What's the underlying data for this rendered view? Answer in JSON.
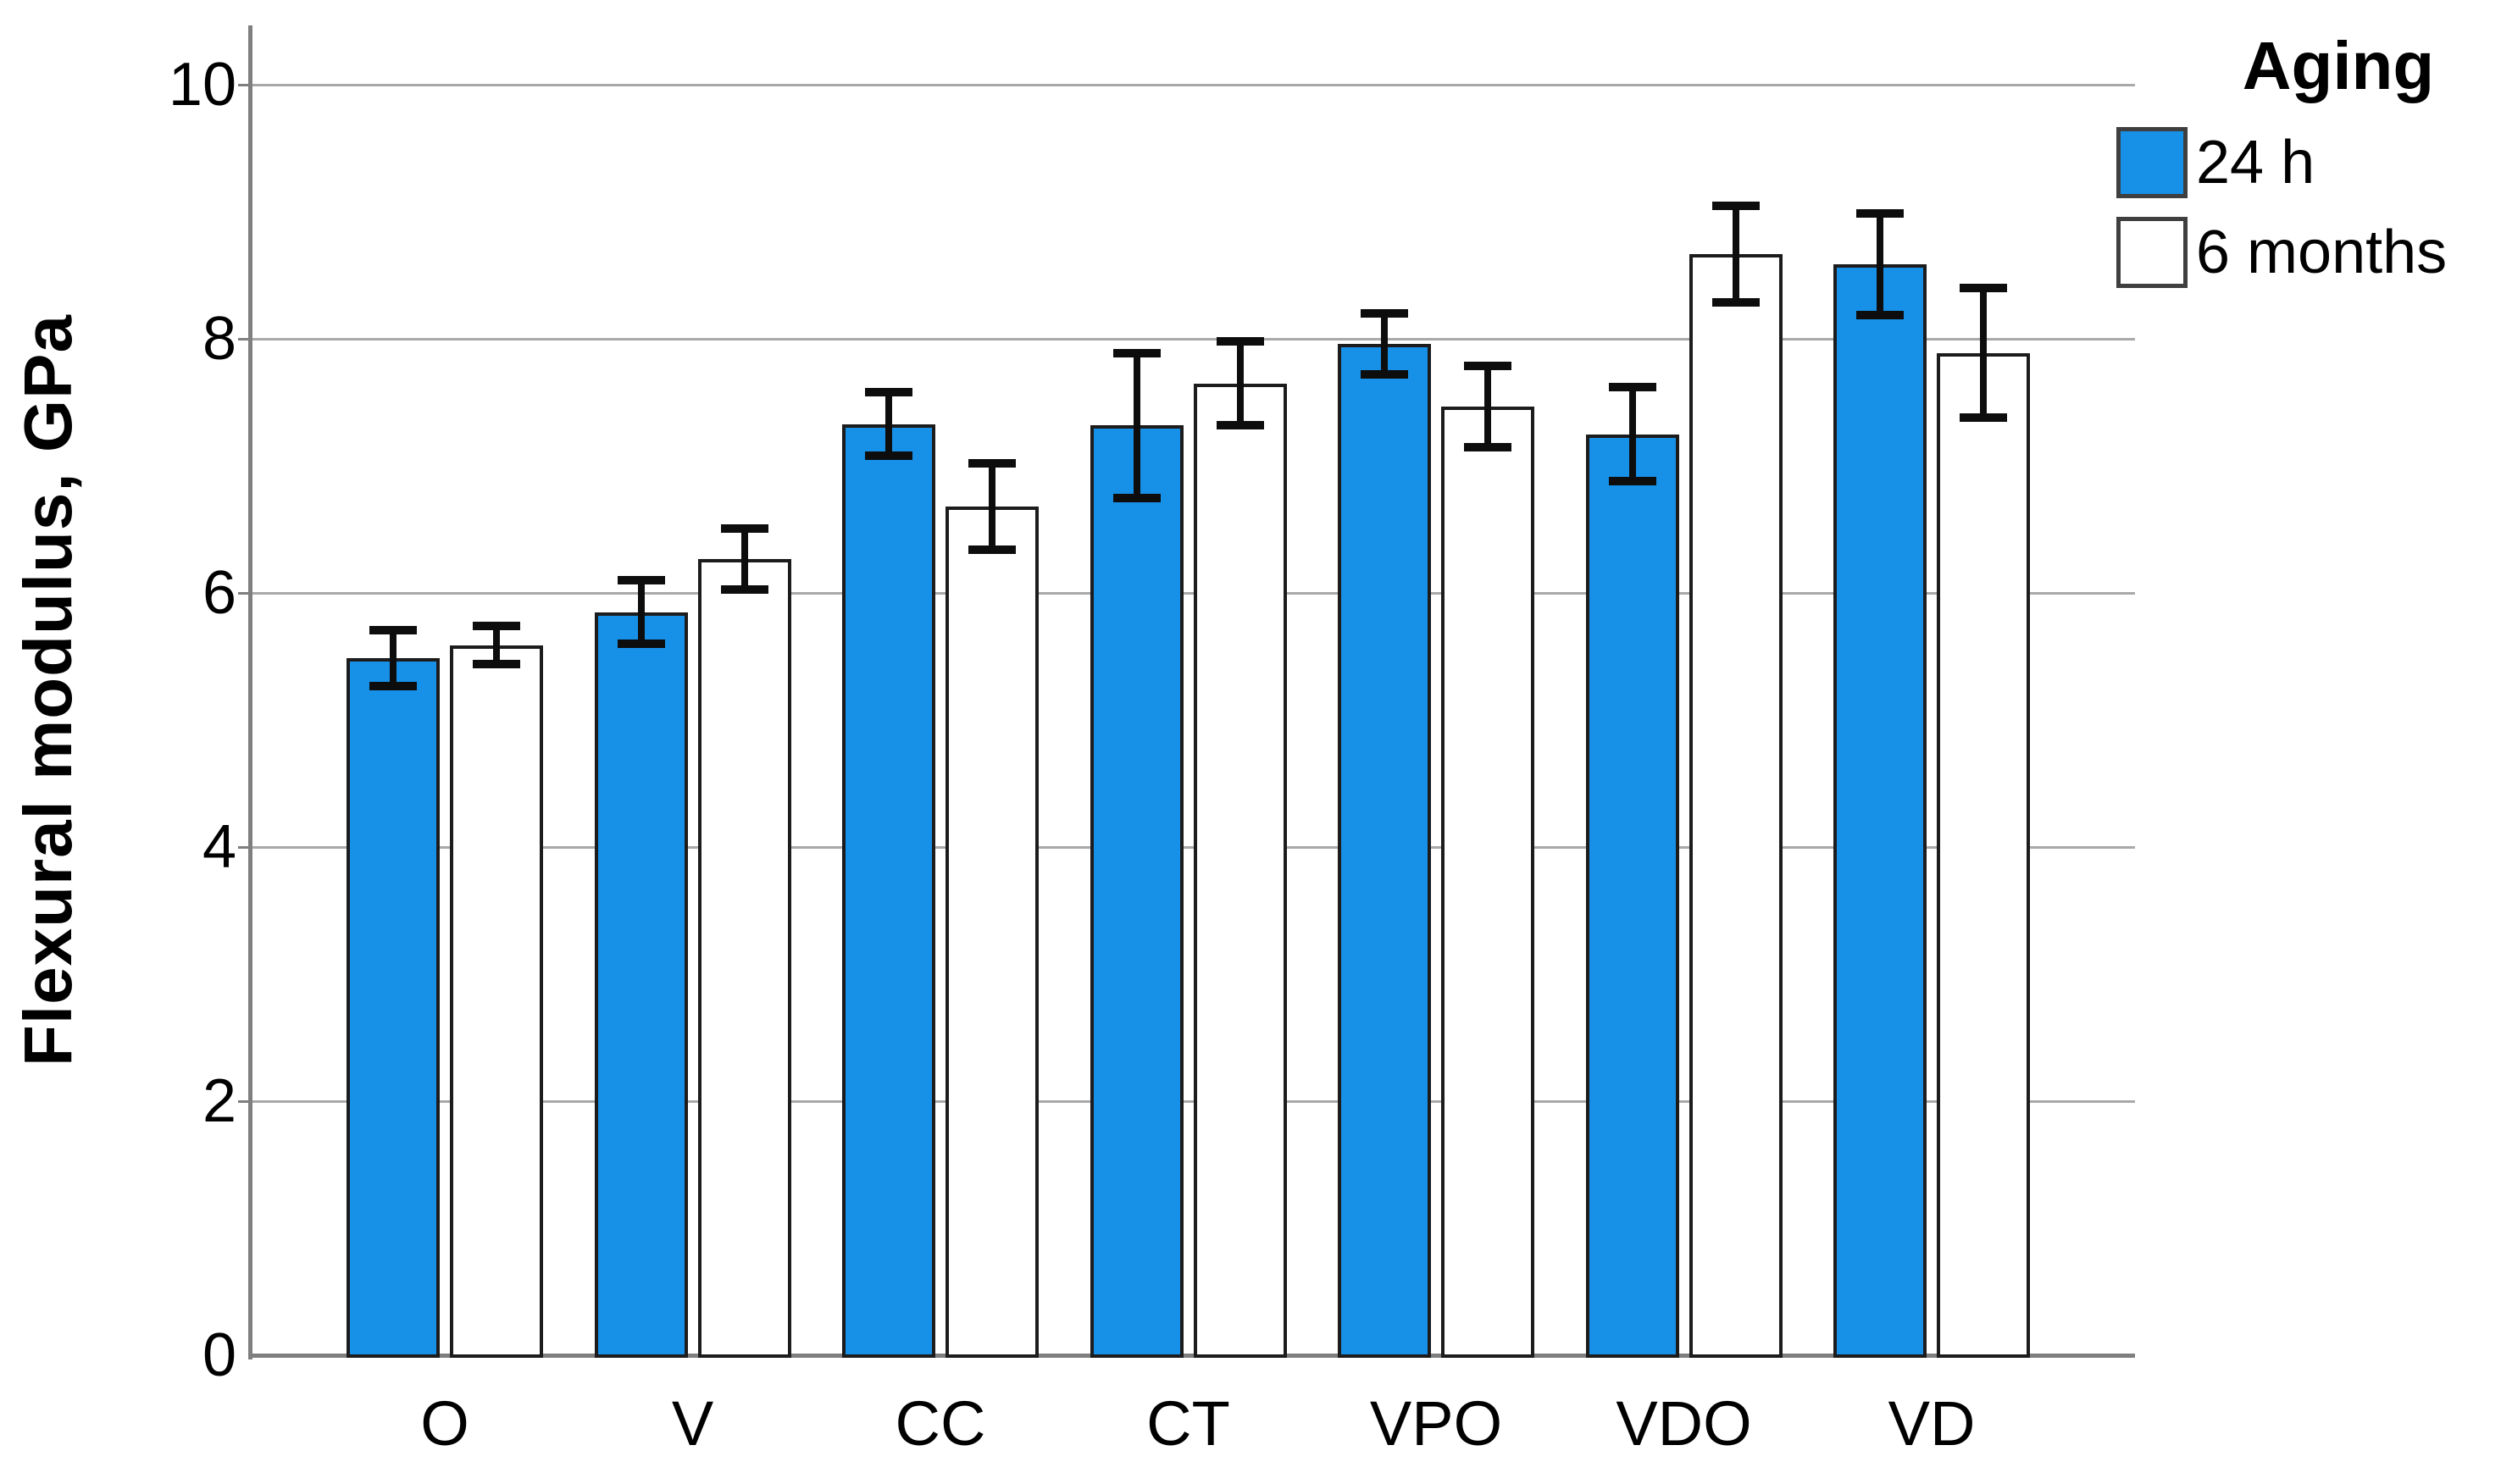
{
  "chart_data": {
    "type": "bar",
    "title": "",
    "xlabel": "",
    "ylabel": "Flexural modulus, GPa",
    "categories": [
      "O",
      "V",
      "CC",
      "CT",
      "VPO",
      "VDO",
      "VD"
    ],
    "series": [
      {
        "name": "24 h",
        "color": "#1790E8",
        "values": [
          5.49,
          5.85,
          7.33,
          7.32,
          7.96,
          7.25,
          8.59
        ],
        "errors": [
          0.22,
          0.25,
          0.25,
          0.57,
          0.24,
          0.37,
          0.4
        ]
      },
      {
        "name": "6 months",
        "color": "#FFFFFF",
        "values": [
          5.59,
          6.27,
          6.68,
          7.65,
          7.47,
          8.67,
          7.89
        ],
        "errors": [
          0.15,
          0.24,
          0.34,
          0.33,
          0.32,
          0.38,
          0.51
        ]
      }
    ],
    "ylim": [
      0,
      10
    ],
    "yticks": [
      0,
      2,
      4,
      6,
      8,
      10
    ],
    "grid": "horizontal",
    "error_bars": true,
    "legend": {
      "title": "Aging",
      "position": "top-right"
    }
  },
  "colors": {
    "bar_fill_24h": "#1790E8",
    "bar_fill_6months": "#FFFFFF",
    "bar_outline": "#1C1C1C",
    "gridline": "#A9A9A9",
    "axis": "#7F7F7F",
    "error_bar": "#0D0D0D",
    "text": "#000000",
    "background": "#FFFFFF"
  }
}
